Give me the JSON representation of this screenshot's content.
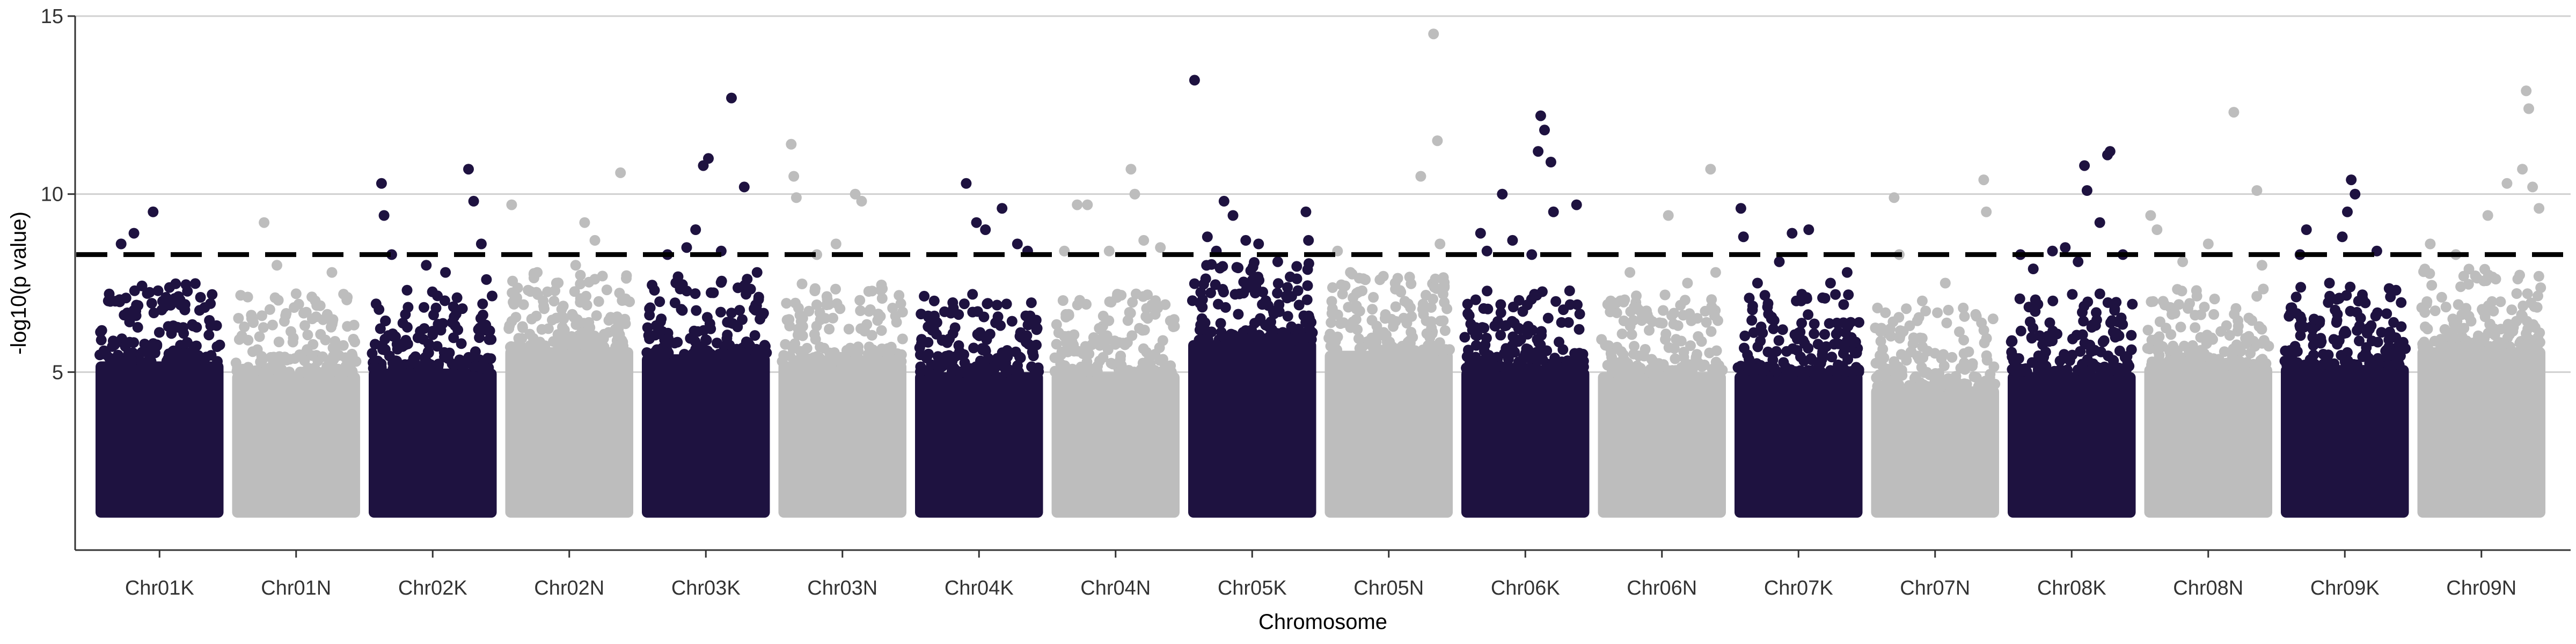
{
  "chart_data": {
    "type": "scatter",
    "subtype": "manhattan",
    "title": "",
    "xlabel": "Chromosome",
    "ylabel": "-log10(p value)",
    "ylim": [
      0,
      15
    ],
    "y_ticks": [
      5,
      10,
      15
    ],
    "grid": "horizontal",
    "legend": "none",
    "threshold": 8.3,
    "colors": {
      "K": "#1e1240",
      "N": "#bdbdbd"
    },
    "baseline_floor": 1.0,
    "categories": [
      "Chr01K",
      "Chr01N",
      "Chr02K",
      "Chr02N",
      "Chr03K",
      "Chr03N",
      "Chr04K",
      "Chr04N",
      "Chr05K",
      "Chr05N",
      "Chr06K",
      "Chr06N",
      "Chr07K",
      "Chr07N",
      "Chr08K",
      "Chr08N",
      "Chr09K",
      "Chr09N"
    ],
    "series": [
      {
        "chromosome": "Chr01K",
        "color": "#1e1240",
        "bulk_top": 5.3,
        "highlights": [
          {
            "x": 0.1,
            "y": 7.0
          },
          {
            "x": 0.2,
            "y": 8.6
          },
          {
            "x": 0.3,
            "y": 8.9
          },
          {
            "x": 0.45,
            "y": 9.5
          },
          {
            "x": 0.55,
            "y": 7.1
          },
          {
            "x": 0.7,
            "y": 6.9
          },
          {
            "x": 0.82,
            "y": 7.1
          },
          {
            "x": 0.9,
            "y": 6.3
          }
        ]
      },
      {
        "chromosome": "Chr01N",
        "color": "#bdbdbd",
        "bulk_top": 5.0,
        "highlights": [
          {
            "x": 0.15,
            "y": 6.6
          },
          {
            "x": 0.25,
            "y": 9.2
          },
          {
            "x": 0.35,
            "y": 8.0
          },
          {
            "x": 0.5,
            "y": 7.2
          },
          {
            "x": 0.65,
            "y": 7.0
          },
          {
            "x": 0.78,
            "y": 7.8
          },
          {
            "x": 0.9,
            "y": 7.1
          }
        ]
      },
      {
        "chromosome": "Chr02K",
        "color": "#1e1240",
        "bulk_top": 5.1,
        "highlights": [
          {
            "x": 0.1,
            "y": 10.3
          },
          {
            "x": 0.12,
            "y": 9.4
          },
          {
            "x": 0.18,
            "y": 8.3
          },
          {
            "x": 0.3,
            "y": 7.3
          },
          {
            "x": 0.45,
            "y": 8.0
          },
          {
            "x": 0.6,
            "y": 7.8
          },
          {
            "x": 0.78,
            "y": 10.7
          },
          {
            "x": 0.82,
            "y": 9.8
          },
          {
            "x": 0.88,
            "y": 8.6
          },
          {
            "x": 0.92,
            "y": 7.6
          }
        ]
      },
      {
        "chromosome": "Chr02N",
        "color": "#bdbdbd",
        "bulk_top": 5.7,
        "highlights": [
          {
            "x": 0.05,
            "y": 9.7
          },
          {
            "x": 0.25,
            "y": 7.8
          },
          {
            "x": 0.4,
            "y": 7.5
          },
          {
            "x": 0.55,
            "y": 8.0
          },
          {
            "x": 0.62,
            "y": 9.2
          },
          {
            "x": 0.7,
            "y": 8.7
          },
          {
            "x": 0.9,
            "y": 10.6
          }
        ]
      },
      {
        "chromosome": "Chr03K",
        "color": "#1e1240",
        "bulk_top": 5.5,
        "highlights": [
          {
            "x": 0.2,
            "y": 8.3
          },
          {
            "x": 0.35,
            "y": 8.5
          },
          {
            "x": 0.42,
            "y": 9.0
          },
          {
            "x": 0.48,
            "y": 10.8
          },
          {
            "x": 0.52,
            "y": 11.0
          },
          {
            "x": 0.62,
            "y": 8.4
          },
          {
            "x": 0.7,
            "y": 12.7
          },
          {
            "x": 0.8,
            "y": 10.2
          },
          {
            "x": 0.9,
            "y": 7.8
          }
        ]
      },
      {
        "chromosome": "Chr03N",
        "color": "#bdbdbd",
        "bulk_top": 5.3,
        "highlights": [
          {
            "x": 0.1,
            "y": 11.4
          },
          {
            "x": 0.12,
            "y": 10.5
          },
          {
            "x": 0.14,
            "y": 9.9
          },
          {
            "x": 0.3,
            "y": 8.3
          },
          {
            "x": 0.45,
            "y": 8.6
          },
          {
            "x": 0.6,
            "y": 10.0
          },
          {
            "x": 0.65,
            "y": 9.8
          },
          {
            "x": 0.8,
            "y": 7.3
          }
        ]
      },
      {
        "chromosome": "Chr04K",
        "color": "#1e1240",
        "bulk_top": 5.0,
        "highlights": [
          {
            "x": 0.15,
            "y": 7.0
          },
          {
            "x": 0.3,
            "y": 6.8
          },
          {
            "x": 0.4,
            "y": 10.3
          },
          {
            "x": 0.48,
            "y": 9.2
          },
          {
            "x": 0.55,
            "y": 9.0
          },
          {
            "x": 0.68,
            "y": 9.6
          },
          {
            "x": 0.8,
            "y": 8.6
          },
          {
            "x": 0.88,
            "y": 8.4
          }
        ]
      },
      {
        "chromosome": "Chr04N",
        "color": "#bdbdbd",
        "bulk_top": 5.0,
        "highlights": [
          {
            "x": 0.1,
            "y": 8.4
          },
          {
            "x": 0.2,
            "y": 9.7
          },
          {
            "x": 0.28,
            "y": 9.7
          },
          {
            "x": 0.45,
            "y": 8.4
          },
          {
            "x": 0.62,
            "y": 10.7
          },
          {
            "x": 0.65,
            "y": 10.0
          },
          {
            "x": 0.72,
            "y": 8.7
          },
          {
            "x": 0.85,
            "y": 8.5
          }
        ]
      },
      {
        "chromosome": "Chr05K",
        "color": "#1e1240",
        "bulk_top": 5.9,
        "highlights": [
          {
            "x": 0.05,
            "y": 13.2
          },
          {
            "x": 0.15,
            "y": 8.8
          },
          {
            "x": 0.22,
            "y": 8.4
          },
          {
            "x": 0.28,
            "y": 9.8
          },
          {
            "x": 0.35,
            "y": 9.4
          },
          {
            "x": 0.45,
            "y": 8.7
          },
          {
            "x": 0.55,
            "y": 8.6
          },
          {
            "x": 0.7,
            "y": 8.1
          },
          {
            "x": 0.92,
            "y": 9.5
          },
          {
            "x": 0.94,
            "y": 8.7
          }
        ]
      },
      {
        "chromosome": "Chr05N",
        "color": "#bdbdbd",
        "bulk_top": 5.6,
        "highlights": [
          {
            "x": 0.1,
            "y": 8.4
          },
          {
            "x": 0.2,
            "y": 7.8
          },
          {
            "x": 0.38,
            "y": 7.1
          },
          {
            "x": 0.55,
            "y": 7.5
          },
          {
            "x": 0.75,
            "y": 10.5
          },
          {
            "x": 0.85,
            "y": 14.5
          },
          {
            "x": 0.88,
            "y": 11.5
          },
          {
            "x": 0.9,
            "y": 8.6
          }
        ]
      },
      {
        "chromosome": "Chr06K",
        "color": "#1e1240",
        "bulk_top": 5.1,
        "highlights": [
          {
            "x": 0.15,
            "y": 8.9
          },
          {
            "x": 0.2,
            "y": 8.4
          },
          {
            "x": 0.32,
            "y": 10.0
          },
          {
            "x": 0.4,
            "y": 8.7
          },
          {
            "x": 0.55,
            "y": 8.3
          },
          {
            "x": 0.6,
            "y": 11.2
          },
          {
            "x": 0.62,
            "y": 12.2
          },
          {
            "x": 0.65,
            "y": 11.8
          },
          {
            "x": 0.7,
            "y": 10.9
          },
          {
            "x": 0.72,
            "y": 9.5
          },
          {
            "x": 0.9,
            "y": 9.7
          }
        ]
      },
      {
        "chromosome": "Chr06N",
        "color": "#bdbdbd",
        "bulk_top": 5.0,
        "highlights": [
          {
            "x": 0.1,
            "y": 7.0
          },
          {
            "x": 0.25,
            "y": 7.8
          },
          {
            "x": 0.4,
            "y": 6.5
          },
          {
            "x": 0.55,
            "y": 9.4
          },
          {
            "x": 0.7,
            "y": 7.5
          },
          {
            "x": 0.88,
            "y": 10.7
          },
          {
            "x": 0.92,
            "y": 7.8
          }
        ]
      },
      {
        "chromosome": "Chr07K",
        "color": "#1e1240",
        "bulk_top": 5.0,
        "highlights": [
          {
            "x": 0.05,
            "y": 9.6
          },
          {
            "x": 0.07,
            "y": 8.8
          },
          {
            "x": 0.18,
            "y": 7.5
          },
          {
            "x": 0.35,
            "y": 8.1
          },
          {
            "x": 0.45,
            "y": 8.9
          },
          {
            "x": 0.58,
            "y": 9.0
          },
          {
            "x": 0.75,
            "y": 7.5
          },
          {
            "x": 0.88,
            "y": 7.8
          }
        ]
      },
      {
        "chromosome": "Chr07N",
        "color": "#bdbdbd",
        "bulk_top": 4.6,
        "highlights": [
          {
            "x": 0.05,
            "y": 6.8
          },
          {
            "x": 0.18,
            "y": 9.9
          },
          {
            "x": 0.22,
            "y": 8.3
          },
          {
            "x": 0.4,
            "y": 7.0
          },
          {
            "x": 0.58,
            "y": 7.5
          },
          {
            "x": 0.72,
            "y": 6.8
          },
          {
            "x": 0.88,
            "y": 10.4
          },
          {
            "x": 0.9,
            "y": 9.5
          }
        ]
      },
      {
        "chromosome": "Chr08K",
        "color": "#1e1240",
        "bulk_top": 5.0,
        "highlights": [
          {
            "x": 0.1,
            "y": 8.3
          },
          {
            "x": 0.2,
            "y": 7.9
          },
          {
            "x": 0.35,
            "y": 8.4
          },
          {
            "x": 0.45,
            "y": 8.5
          },
          {
            "x": 0.55,
            "y": 8.1
          },
          {
            "x": 0.6,
            "y": 10.8
          },
          {
            "x": 0.62,
            "y": 10.1
          },
          {
            "x": 0.72,
            "y": 9.2
          },
          {
            "x": 0.78,
            "y": 11.1
          },
          {
            "x": 0.8,
            "y": 11.2
          },
          {
            "x": 0.9,
            "y": 8.3
          }
        ]
      },
      {
        "chromosome": "Chr08N",
        "color": "#bdbdbd",
        "bulk_top": 5.2,
        "highlights": [
          {
            "x": 0.05,
            "y": 9.4
          },
          {
            "x": 0.1,
            "y": 9.0
          },
          {
            "x": 0.3,
            "y": 8.1
          },
          {
            "x": 0.5,
            "y": 8.6
          },
          {
            "x": 0.7,
            "y": 12.3
          },
          {
            "x": 0.88,
            "y": 10.1
          },
          {
            "x": 0.92,
            "y": 8.0
          }
        ]
      },
      {
        "chromosome": "Chr09K",
        "color": "#1e1240",
        "bulk_top": 5.2,
        "highlights": [
          {
            "x": 0.15,
            "y": 8.3
          },
          {
            "x": 0.2,
            "y": 9.0
          },
          {
            "x": 0.38,
            "y": 7.5
          },
          {
            "x": 0.48,
            "y": 8.8
          },
          {
            "x": 0.52,
            "y": 9.5
          },
          {
            "x": 0.55,
            "y": 10.4
          },
          {
            "x": 0.58,
            "y": 10.0
          },
          {
            "x": 0.75,
            "y": 8.4
          },
          {
            "x": 0.9,
            "y": 7.3
          }
        ]
      },
      {
        "chromosome": "Chr09N",
        "color": "#bdbdbd",
        "bulk_top": 5.7,
        "highlights": [
          {
            "x": 0.1,
            "y": 8.6
          },
          {
            "x": 0.3,
            "y": 8.3
          },
          {
            "x": 0.55,
            "y": 9.4
          },
          {
            "x": 0.7,
            "y": 10.3
          },
          {
            "x": 0.82,
            "y": 10.7
          },
          {
            "x": 0.85,
            "y": 12.9
          },
          {
            "x": 0.87,
            "y": 12.4
          },
          {
            "x": 0.9,
            "y": 10.2
          },
          {
            "x": 0.95,
            "y": 9.6
          }
        ]
      }
    ]
  }
}
